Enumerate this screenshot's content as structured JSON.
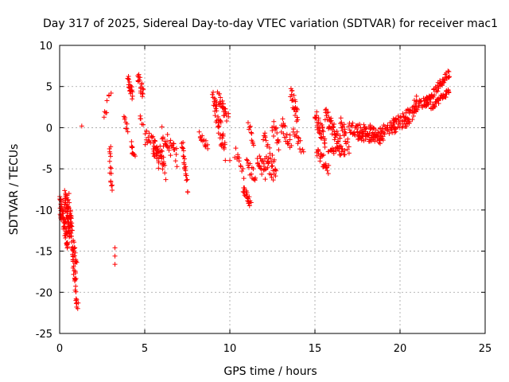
{
  "chart_data": {
    "type": "scatter",
    "title": "Day 317 of 2025, Sidereal Day-to-day VTEC variation (SDTVAR) for receiver mac1",
    "xlabel": "GPS time / hours",
    "ylabel": "SDTVAR / TECUs",
    "xlim": [
      0,
      25
    ],
    "ylim": [
      -25,
      10
    ],
    "xticks": [
      0,
      5,
      10,
      15,
      20,
      25
    ],
    "yticks": [
      -25,
      -20,
      -15,
      -10,
      -5,
      0,
      5,
      10
    ],
    "grid": true,
    "marker": "+",
    "marker_color": "#ff0000",
    "segments": [
      {
        "x0": 0.0,
        "x1": 0.5,
        "y0": -9.5,
        "y1": -14.0,
        "spread": 2.5,
        "n": 60
      },
      {
        "x0": 0.3,
        "x1": 0.7,
        "y0": -8.5,
        "y1": -12.0,
        "spread": 3.0,
        "n": 50
      },
      {
        "x0": 0.5,
        "x1": 1.0,
        "y0": -11.0,
        "y1": -17.0,
        "spread": 3.0,
        "n": 40
      },
      {
        "x0": 0.75,
        "x1": 1.05,
        "y0": -15.0,
        "y1": -21.8,
        "spread": 1.5,
        "n": 25
      },
      {
        "x0": 2.6,
        "x1": 2.8,
        "y0": 1.5,
        "y1": 2.2,
        "spread": 0.8,
        "n": 4
      },
      {
        "x0": 2.8,
        "x1": 3.0,
        "y0": 3.5,
        "y1": 4.2,
        "spread": 0.6,
        "n": 4
      },
      {
        "x0": 2.9,
        "x1": 3.1,
        "y0": -2.5,
        "y1": -7.5,
        "spread": 1.0,
        "n": 12
      },
      {
        "x0": 3.8,
        "x1": 4.0,
        "y0": 1.5,
        "y1": -0.5,
        "spread": 1.0,
        "n": 8
      },
      {
        "x0": 4.0,
        "x1": 4.3,
        "y0": 6.0,
        "y1": 4.0,
        "spread": 1.5,
        "n": 20
      },
      {
        "x0": 4.2,
        "x1": 4.4,
        "y0": -2.0,
        "y1": -3.5,
        "spread": 1.0,
        "n": 10
      },
      {
        "x0": 4.6,
        "x1": 4.9,
        "y0": 6.0,
        "y1": 4.0,
        "spread": 1.5,
        "n": 18
      },
      {
        "x0": 4.7,
        "x1": 4.9,
        "y0": 1.2,
        "y1": 0.5,
        "spread": 0.5,
        "n": 5
      },
      {
        "x0": 5.0,
        "x1": 5.8,
        "y0": -1.0,
        "y1": -3.0,
        "spread": 2.0,
        "n": 25
      },
      {
        "x0": 5.5,
        "x1": 6.2,
        "y0": -2.0,
        "y1": -5.0,
        "spread": 3.0,
        "n": 40
      },
      {
        "x0": 6.0,
        "x1": 6.9,
        "y0": -1.0,
        "y1": -3.5,
        "spread": 2.5,
        "n": 30
      },
      {
        "x0": 7.2,
        "x1": 7.5,
        "y0": -1.5,
        "y1": -7.5,
        "spread": 1.5,
        "n": 22
      },
      {
        "x0": 8.2,
        "x1": 8.7,
        "y0": -1.0,
        "y1": -2.2,
        "spread": 1.0,
        "n": 14
      },
      {
        "x0": 9.0,
        "x1": 9.7,
        "y0": 3.5,
        "y1": -2.5,
        "spread": 3.0,
        "n": 45
      },
      {
        "x0": 9.3,
        "x1": 9.9,
        "y0": 3.8,
        "y1": 1.0,
        "spread": 1.5,
        "n": 25
      },
      {
        "x0": 10.3,
        "x1": 10.8,
        "y0": -3.0,
        "y1": -5.5,
        "spread": 1.5,
        "n": 12
      },
      {
        "x0": 10.8,
        "x1": 11.2,
        "y0": -7.5,
        "y1": -9.0,
        "spread": 1.2,
        "n": 20
      },
      {
        "x0": 11.0,
        "x1": 11.5,
        "y0": -4.5,
        "y1": -6.0,
        "spread": 1.5,
        "n": 15
      },
      {
        "x0": 11.1,
        "x1": 11.4,
        "y0": 0.5,
        "y1": -2.0,
        "spread": 1.0,
        "n": 10
      },
      {
        "x0": 11.6,
        "x1": 12.1,
        "y0": -4.0,
        "y1": -5.5,
        "spread": 2.0,
        "n": 20
      },
      {
        "x0": 12.0,
        "x1": 12.7,
        "y0": -2.0,
        "y1": -6.0,
        "spread": 3.5,
        "n": 35
      },
      {
        "x0": 12.5,
        "x1": 12.9,
        "y0": 0.5,
        "y1": -2.0,
        "spread": 2.0,
        "n": 15
      },
      {
        "x0": 13.0,
        "x1": 13.6,
        "y0": 0.5,
        "y1": -2.0,
        "spread": 2.0,
        "n": 20
      },
      {
        "x0": 13.6,
        "x1": 14.0,
        "y0": 4.5,
        "y1": 1.0,
        "spread": 2.0,
        "n": 25
      },
      {
        "x0": 13.7,
        "x1": 14.3,
        "y0": -0.5,
        "y1": -2.5,
        "spread": 1.5,
        "n": 15
      },
      {
        "x0": 15.0,
        "x1": 15.6,
        "y0": 1.5,
        "y1": -1.5,
        "spread": 2.0,
        "n": 35
      },
      {
        "x0": 15.1,
        "x1": 15.8,
        "y0": -3.0,
        "y1": -5.0,
        "spread": 1.5,
        "n": 25
      },
      {
        "x0": 15.6,
        "x1": 16.5,
        "y0": 1.5,
        "y1": -2.0,
        "spread": 2.0,
        "n": 45
      },
      {
        "x0": 15.8,
        "x1": 16.8,
        "y0": -2.5,
        "y1": -3.0,
        "spread": 1.0,
        "n": 25
      },
      {
        "x0": 16.5,
        "x1": 17.0,
        "y0": 1.0,
        "y1": -2.5,
        "spread": 2.0,
        "n": 20
      },
      {
        "x0": 17.0,
        "x1": 18.5,
        "y0": 0.0,
        "y1": -0.5,
        "spread": 1.6,
        "n": 55
      },
      {
        "x0": 17.5,
        "x1": 19.0,
        "y0": -1.0,
        "y1": -1.5,
        "spread": 1.0,
        "n": 45
      },
      {
        "x0": 18.5,
        "x1": 19.8,
        "y0": -1.0,
        "y1": 0.5,
        "spread": 1.5,
        "n": 45
      },
      {
        "x0": 19.5,
        "x1": 20.5,
        "y0": 0.0,
        "y1": 1.5,
        "spread": 2.0,
        "n": 40
      },
      {
        "x0": 20.3,
        "x1": 21.0,
        "y0": 0.5,
        "y1": 3.0,
        "spread": 2.0,
        "n": 30
      },
      {
        "x0": 20.8,
        "x1": 21.8,
        "y0": 2.5,
        "y1": 3.5,
        "spread": 1.2,
        "n": 30
      },
      {
        "x0": 21.5,
        "x1": 22.9,
        "y0": 3.0,
        "y1": 6.7,
        "spread": 1.0,
        "n": 55
      },
      {
        "x0": 21.8,
        "x1": 22.9,
        "y0": 2.5,
        "y1": 4.5,
        "spread": 0.8,
        "n": 35
      }
    ],
    "points": [
      [
        1.3,
        0.2
      ],
      [
        3.25,
        -14.6
      ],
      [
        3.25,
        -15.6
      ],
      [
        3.25,
        -16.6
      ],
      [
        0.1,
        -9.0
      ],
      [
        0.2,
        -8.8
      ],
      [
        0.55,
        -8.0
      ],
      [
        0.95,
        -21.0
      ],
      [
        1.0,
        -21.8
      ],
      [
        3.0,
        -2.3
      ],
      [
        2.95,
        -5.5
      ],
      [
        3.0,
        -6.5
      ],
      [
        10.0,
        -4.0
      ],
      [
        11.25,
        -9.1
      ]
    ]
  }
}
